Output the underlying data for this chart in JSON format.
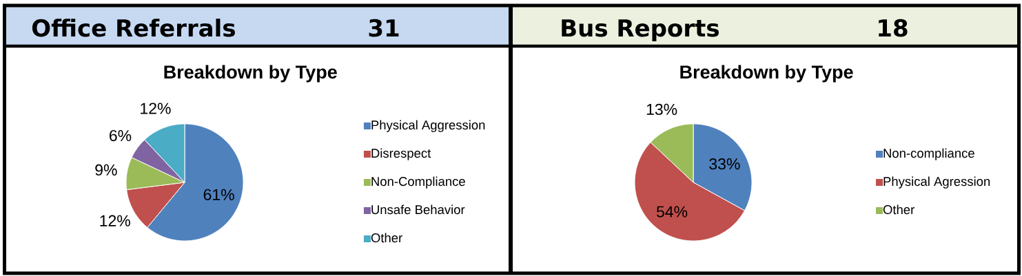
{
  "chart_data": [
    {
      "type": "pie",
      "title": "Office Referrals",
      "annotations": [
        "31"
      ],
      "subtitle": "Breakdown by Type",
      "categories": [
        "Physical Aggression",
        "Disrespect",
        "Non-Compliance",
        "Unsafe Behavior",
        "Other"
      ],
      "values": [
        61,
        12,
        9,
        6,
        12
      ],
      "value_labels": [
        "61%",
        "12%",
        "9%",
        "6%",
        "12%"
      ],
      "colors": [
        "#4f81bd",
        "#c0504d",
        "#9bbb59",
        "#8064a2",
        "#4bacc6"
      ],
      "legend": "right"
    },
    {
      "type": "pie",
      "title": "Bus Reports",
      "annotations": [
        "18"
      ],
      "subtitle": "Breakdown by Type",
      "categories": [
        "Non-compliance",
        "Physical Agression",
        "Other"
      ],
      "values": [
        33,
        54,
        13
      ],
      "value_labels": [
        "33%",
        "54%",
        "13%"
      ],
      "colors": [
        "#4f81bd",
        "#c0504d",
        "#9bbb59"
      ],
      "legend": "right"
    }
  ]
}
